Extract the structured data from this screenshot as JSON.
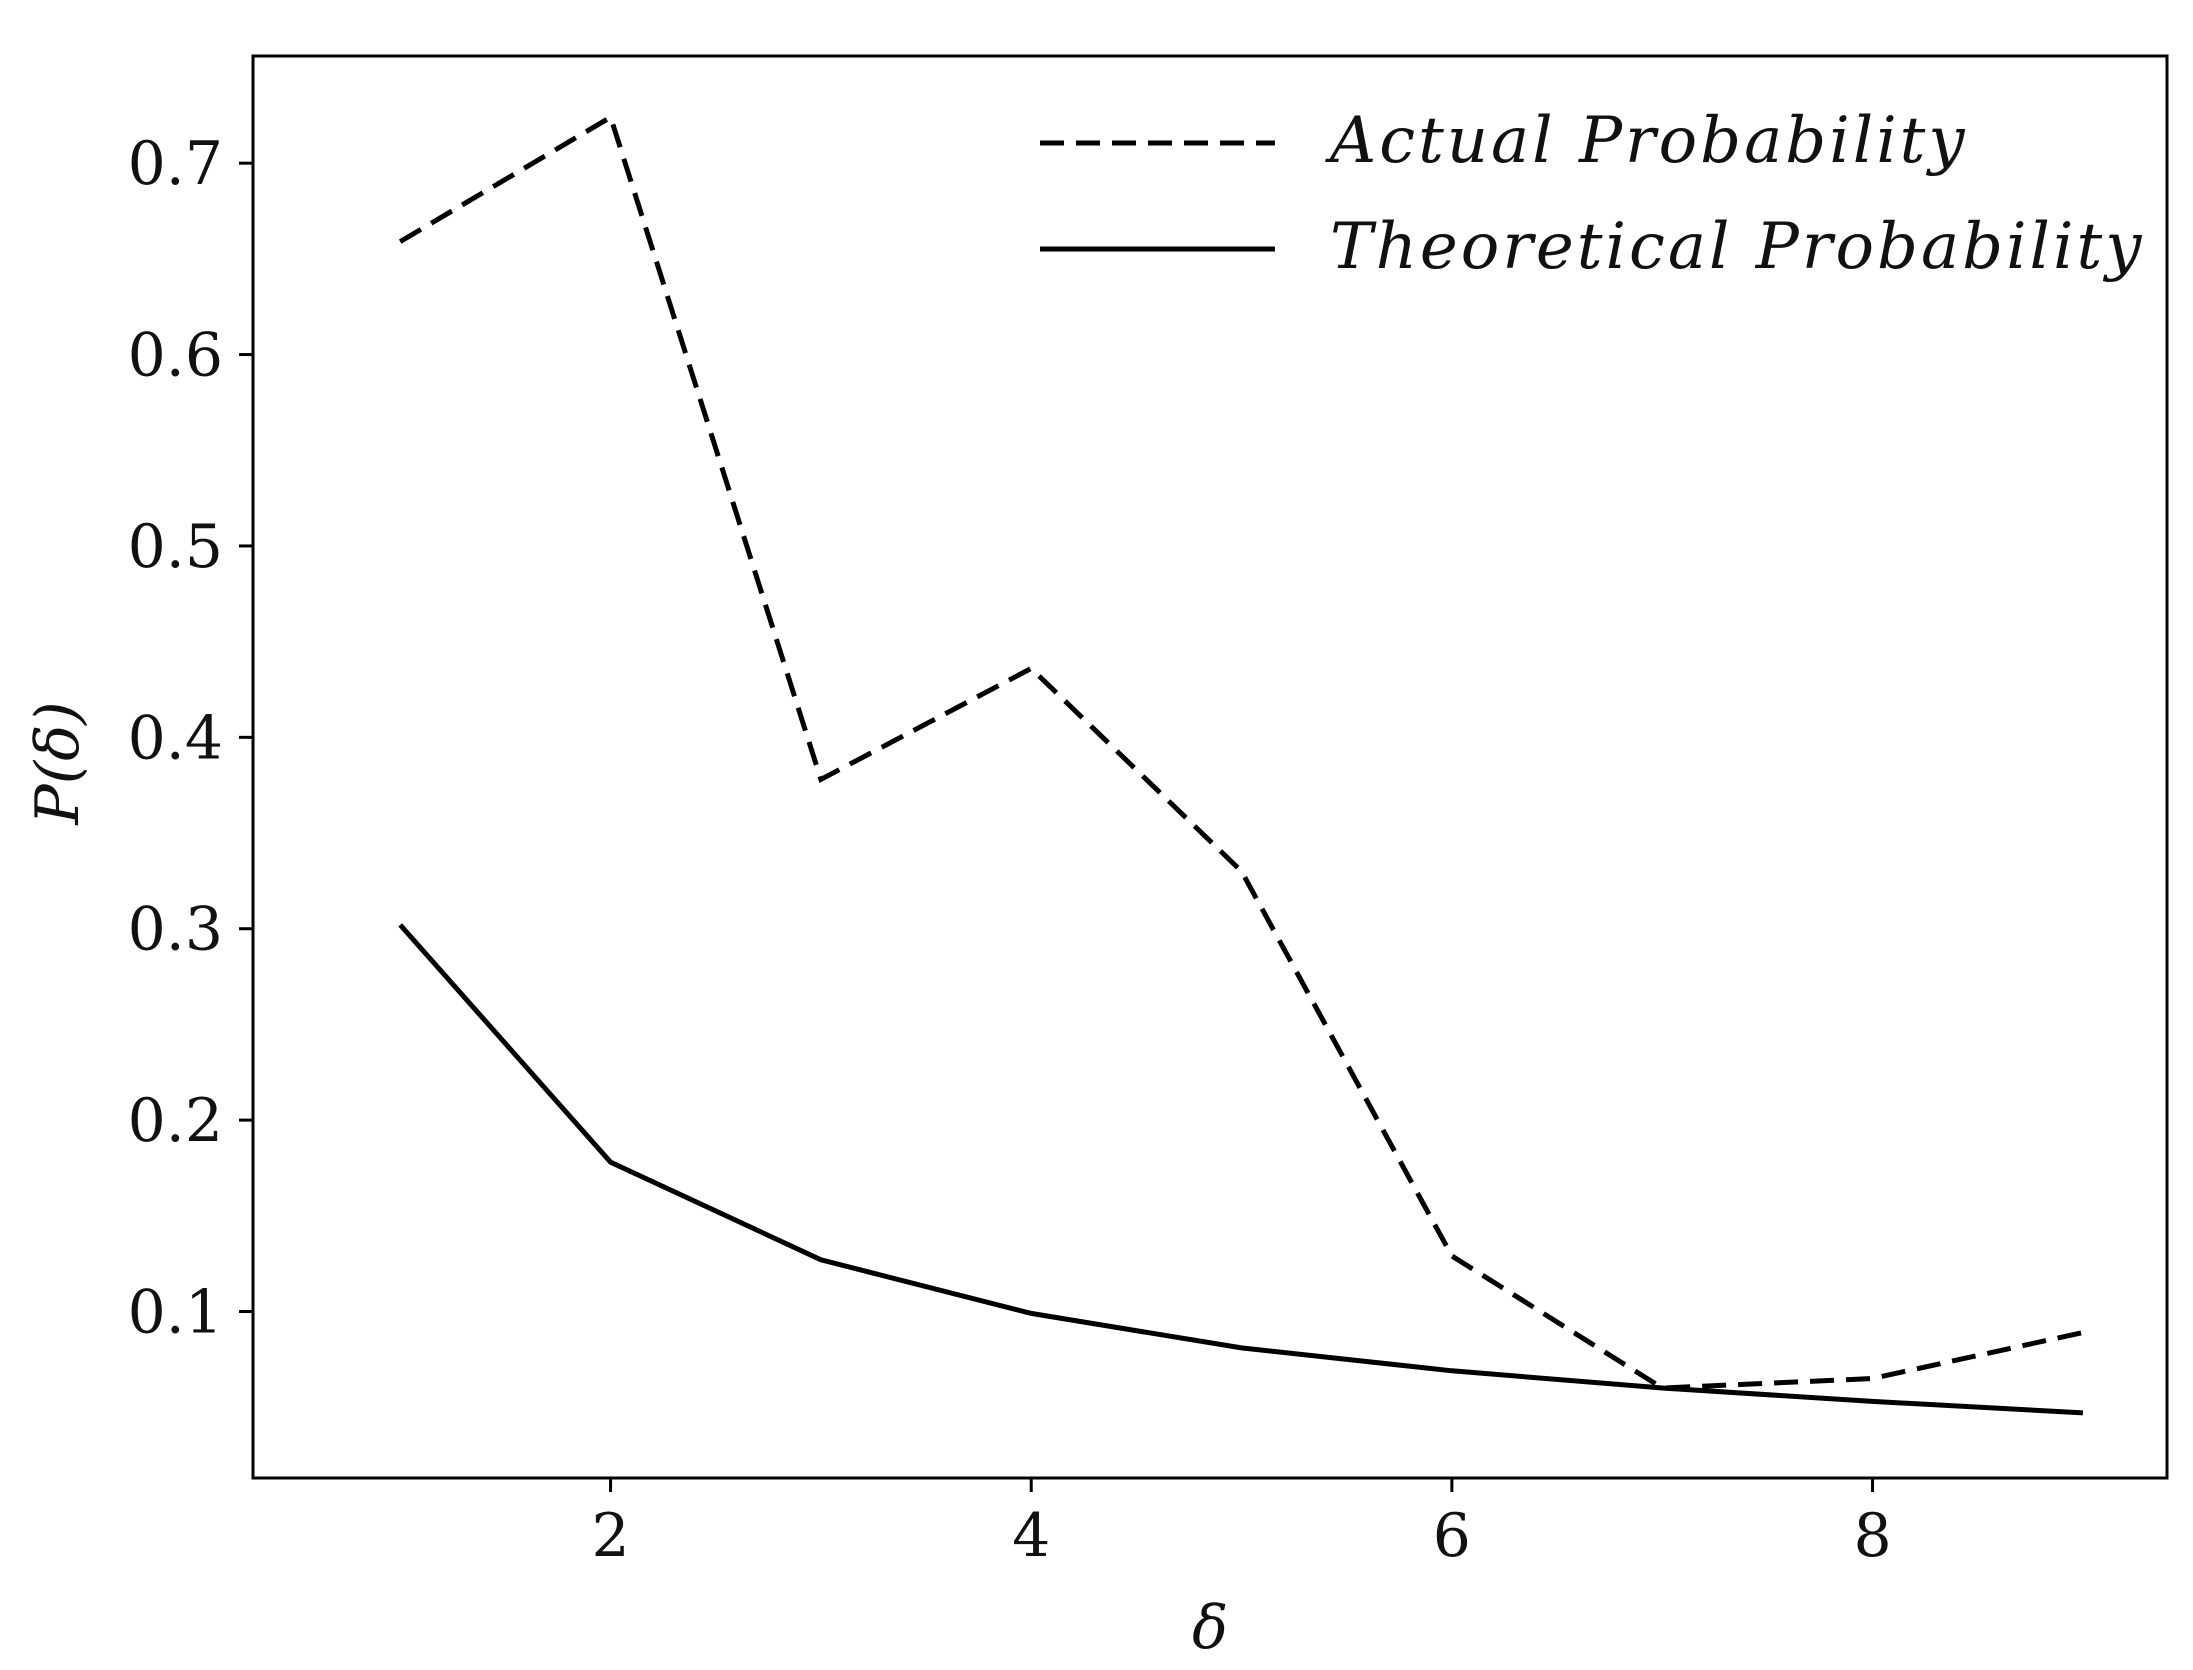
{
  "chart_data": {
    "type": "line",
    "title": "",
    "xlabel": "δ",
    "ylabel": "P(δ)",
    "xlim": [
      0.3,
      9.4
    ],
    "ylim": [
      0.013,
      0.756
    ],
    "xticks": [
      2,
      4,
      6,
      8
    ],
    "yticks": [
      0.1,
      0.2,
      0.3,
      0.4,
      0.5,
      0.6,
      0.7
    ],
    "xtick_labels": [
      "2",
      "4",
      "6",
      "8"
    ],
    "ytick_labels": [
      "0.1",
      "0.2",
      "0.3",
      "0.4",
      "0.5",
      "0.6",
      "0.7"
    ],
    "grid": false,
    "legend_position": "top-right",
    "series": [
      {
        "name": "Actual Probability",
        "style": "dashed",
        "color": "#000000",
        "x": [
          1,
          2,
          3,
          4,
          5,
          6,
          7,
          8,
          9
        ],
        "y": [
          0.659,
          0.724,
          0.378,
          0.436,
          0.33,
          0.129,
          0.06,
          0.065,
          0.089
        ]
      },
      {
        "name": "Theoretical Probability",
        "style": "solid",
        "color": "#000000",
        "x": [
          1,
          2,
          3,
          4,
          5,
          6,
          7,
          8,
          9
        ],
        "y": [
          0.302,
          0.178,
          0.127,
          0.099,
          0.081,
          0.069,
          0.06,
          0.053,
          0.047
        ]
      }
    ]
  }
}
